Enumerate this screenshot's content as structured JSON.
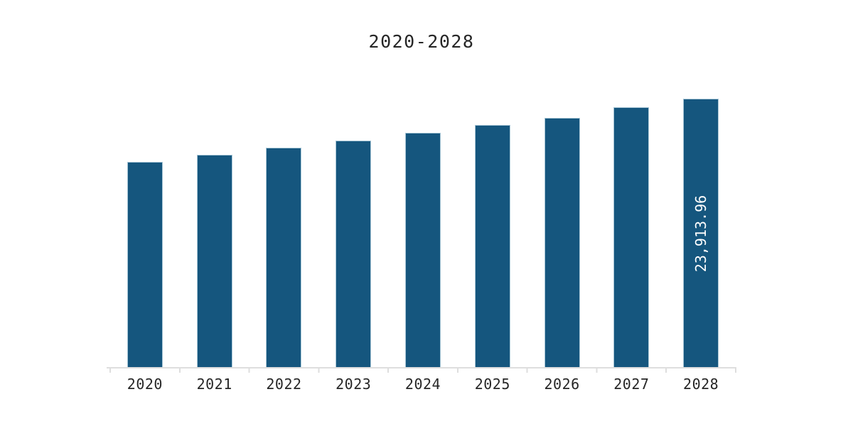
{
  "colors": {
    "background": "#ffffff",
    "bar_fill": "#15567e",
    "bar_border": "#a7c6d6",
    "axis": "#dedede",
    "text": "#262626",
    "bar_label_text": "#ffffff"
  },
  "chart_data": {
    "type": "bar",
    "title": "2020-2028",
    "categories": [
      "2020",
      "2021",
      "2022",
      "2023",
      "2024",
      "2025",
      "2026",
      "2027",
      "2028"
    ],
    "values": [
      18283,
      18916,
      19549,
      20182,
      20877,
      21573,
      22206,
      23155,
      23913.96
    ],
    "bar_labels": [
      "",
      "",
      "",
      "",
      "",
      "",
      "",
      "",
      "23,913.96"
    ],
    "xlabel": "",
    "ylabel": "",
    "ylim": [
      0,
      24000
    ],
    "grid": false,
    "legend": false,
    "y_axis_visible": false
  }
}
